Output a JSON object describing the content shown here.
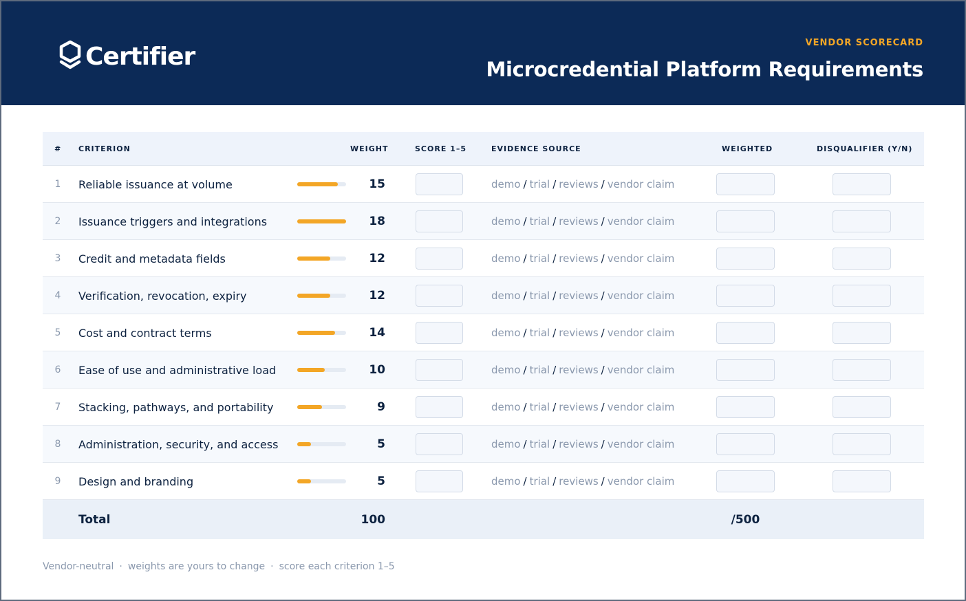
{
  "brand": {
    "logo_text": "Certifier"
  },
  "header": {
    "eyebrow": "VENDOR SCORECARD",
    "title": "Microcredential Platform Requirements"
  },
  "columns": {
    "num": "#",
    "criterion": "CRITERION",
    "weight": "WEIGHT",
    "score": "SCORE 1–5",
    "evidence": "EVIDENCE SOURCE",
    "weighted": "WEIGHTED",
    "disqualifier": "DISQUALIFIER (Y/N)"
  },
  "evidence_parts": [
    "demo",
    "trial",
    "reviews",
    "vendor claim"
  ],
  "evidence_separator": "/",
  "rows": [
    {
      "num": "1",
      "criterion": "Reliable issuance at volume",
      "weight": "15",
      "weight_fraction": 0.83
    },
    {
      "num": "2",
      "criterion": "Issuance triggers and integrations",
      "weight": "18",
      "weight_fraction": 1.0
    },
    {
      "num": "3",
      "criterion": "Credit and metadata fields",
      "weight": "12",
      "weight_fraction": 0.67
    },
    {
      "num": "4",
      "criterion": "Verification, revocation, expiry",
      "weight": "12",
      "weight_fraction": 0.67
    },
    {
      "num": "5",
      "criterion": "Cost and contract terms",
      "weight": "14",
      "weight_fraction": 0.78
    },
    {
      "num": "6",
      "criterion": "Ease of use and administrative load",
      "weight": "10",
      "weight_fraction": 0.56
    },
    {
      "num": "7",
      "criterion": "Stacking, pathways, and portability",
      "weight": "9",
      "weight_fraction": 0.5
    },
    {
      "num": "8",
      "criterion": "Administration, security, and access",
      "weight": "5",
      "weight_fraction": 0.28
    },
    {
      "num": "9",
      "criterion": "Design and branding",
      "weight": "5",
      "weight_fraction": 0.28
    }
  ],
  "total": {
    "label": "Total",
    "weight": "100",
    "weighted": "/500"
  },
  "footer": {
    "items": [
      "Vendor-neutral",
      "weights are yours to change",
      "score each criterion 1–5"
    ],
    "separator": "·"
  },
  "colors": {
    "header_bg": "#0c2a57",
    "accent": "#f3a626",
    "text_dark": "#0d2240",
    "text_muted": "#8a98ad"
  }
}
